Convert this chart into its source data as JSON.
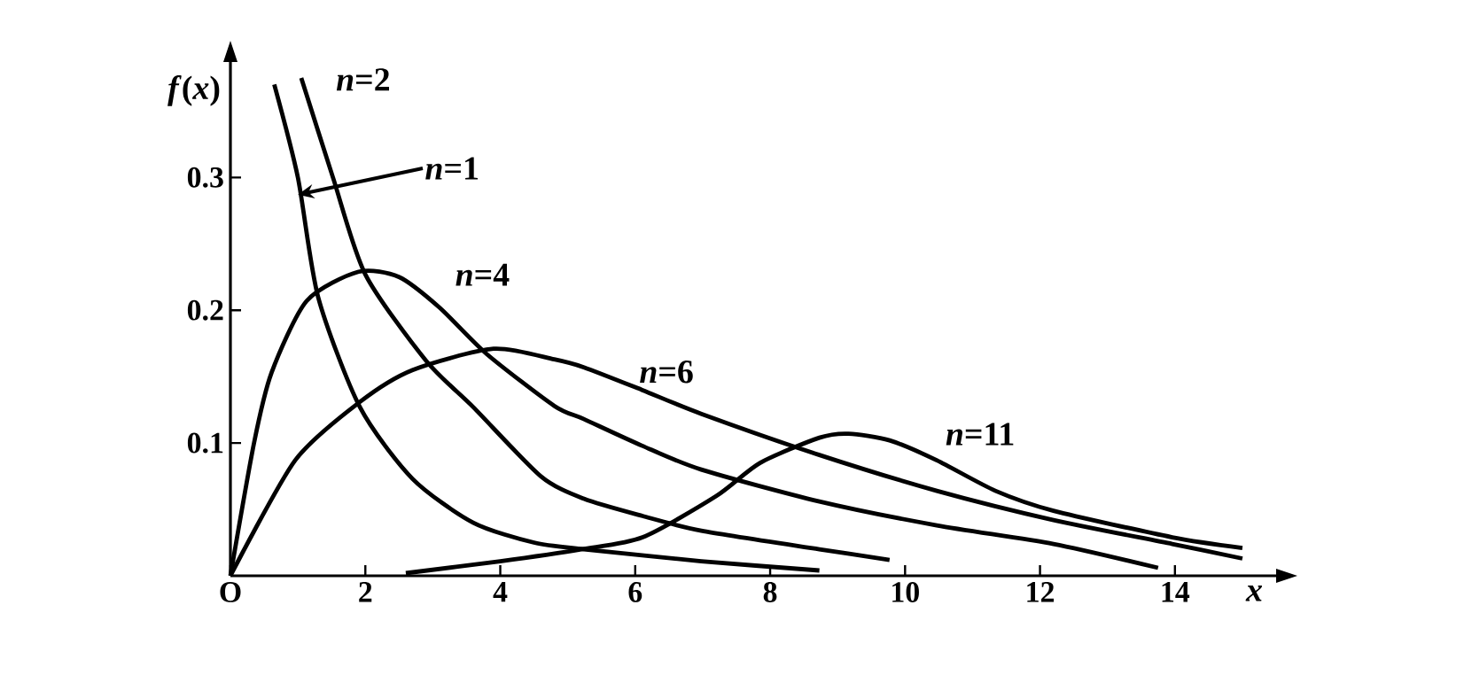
{
  "chart_data": {
    "type": "line",
    "xlabel": "*x*",
    "ylabel": "*f*(*x*)",
    "xlim": [
      0,
      15.5
    ],
    "ylim": [
      0,
      0.387
    ],
    "xticks": [
      {
        "value": 0,
        "label": "O"
      },
      2,
      4,
      6,
      8,
      10,
      12,
      14
    ],
    "yticks": [
      0.1,
      0.2,
      0.3
    ],
    "series": [
      {
        "color": "#000000",
        "x": [
          0.65,
          1.0,
          1.3,
          1.92,
          2.7,
          3.6,
          4.5,
          5.24,
          6.98,
          8.73
        ],
        "values": [
          0.37,
          0.3,
          0.21,
          0.127,
          0.073,
          0.04,
          0.025,
          0.02,
          0.011,
          0.004
        ]
      },
      {
        "color": "#000000",
        "x": [
          1.05,
          1.52,
          2.0,
          2.9,
          3.6,
          4.6,
          5.24,
          6.11,
          6.98,
          8.73,
          9.77
        ],
        "values": [
          0.375,
          0.3,
          0.227,
          0.162,
          0.127,
          0.075,
          0.058,
          0.045,
          0.034,
          0.02,
          0.012
        ]
      },
      {
        "color": "#000000",
        "x": [
          0,
          0.35,
          0.61,
          1.13,
          1.9,
          2.5,
          3.1,
          3.8,
          4.8,
          5.24,
          6.1,
          6.98,
          8.73,
          10.47,
          12.2,
          13.75
        ],
        "values": [
          0,
          0.1,
          0.153,
          0.207,
          0.229,
          0.225,
          0.202,
          0.167,
          0.128,
          0.118,
          0.098,
          0.08,
          0.056,
          0.038,
          0.024,
          0.006
        ]
      },
      {
        "color": "#000000",
        "x": [
          0,
          0.96,
          1.92,
          2.7,
          3.9,
          4.8,
          5.24,
          6.1,
          6.98,
          8.73,
          10.47,
          12.2,
          13.96,
          15.0
        ],
        "values": [
          0,
          0.087,
          0.131,
          0.155,
          0.171,
          0.163,
          0.157,
          0.14,
          0.122,
          0.091,
          0.064,
          0.042,
          0.024,
          0.013
        ]
      },
      {
        "color": "#000000",
        "x": [
          2.6,
          4.0,
          5.2,
          6.11,
          7.2,
          7.85,
          8.73,
          9.16,
          9.77,
          10.47,
          11.34,
          12.2,
          13.96,
          15.0
        ],
        "values": [
          0.002,
          0.011,
          0.02,
          0.029,
          0.06,
          0.085,
          0.104,
          0.107,
          0.102,
          0.087,
          0.064,
          0.049,
          0.029,
          0.021
        ]
      }
    ],
    "annotations": [
      "*n*=2",
      {
        "text": "*n*=1",
        "x": 1.0,
        "y": 0.287
      },
      "*n*=4",
      "*n*=6",
      "*n*=11"
    ]
  }
}
